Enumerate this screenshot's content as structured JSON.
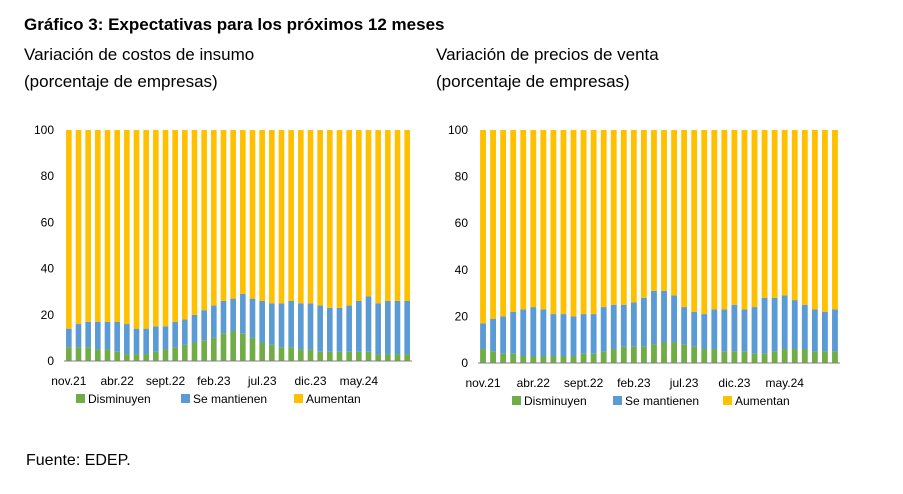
{
  "figure": {
    "title": "Gráfico 3: Expectativas para los próximos 12 meses",
    "source": "Fuente: EDEP."
  },
  "colors": {
    "Disminuyen": "#70ad47",
    "Se mantienen": "#5b9bd5",
    "Aumentan": "#ffc000"
  },
  "chart_data": [
    {
      "type": "bar",
      "stacked": true,
      "subtitle_lines": [
        "Variación de costos de insumo",
        "(porcentaje de empresas)"
      ],
      "ylim": [
        0,
        100
      ],
      "yticks": [
        "0",
        "20",
        "40",
        "60",
        "80",
        "100"
      ],
      "xtick_labels": [
        "nov.21",
        "abr.22",
        "sept.22",
        "feb.23",
        "jul.23",
        "dic.23",
        "may.24"
      ],
      "legend": {
        "position": "bottom",
        "entries": [
          "Disminuyen",
          "Se mantienen",
          "Aumentan"
        ]
      },
      "series": [
        {
          "name": "Disminuyen",
          "values": [
            6,
            6,
            6,
            5,
            5,
            4,
            3,
            3,
            3,
            4,
            5,
            6,
            7,
            8,
            9,
            10,
            12,
            13,
            12,
            10,
            8,
            7,
            6,
            6,
            5,
            5,
            4,
            4,
            4,
            4,
            4,
            4,
            3,
            3,
            3,
            3
          ]
        },
        {
          "name": "Se mantienen",
          "values": [
            8,
            10,
            11,
            12,
            12,
            13,
            13,
            11,
            11,
            11,
            10,
            11,
            11,
            12,
            13,
            14,
            14,
            14,
            17,
            17,
            18,
            18,
            19,
            20,
            20,
            20,
            20,
            19,
            19,
            20,
            22,
            24,
            22,
            23,
            23,
            23
          ]
        },
        {
          "name": "Aumentan",
          "values": [
            86,
            84,
            83,
            83,
            83,
            83,
            84,
            86,
            86,
            85,
            85,
            83,
            82,
            80,
            78,
            76,
            74,
            73,
            71,
            73,
            74,
            75,
            75,
            74,
            75,
            75,
            76,
            77,
            77,
            76,
            74,
            72,
            75,
            74,
            74,
            74
          ]
        }
      ]
    },
    {
      "type": "bar",
      "stacked": true,
      "subtitle_lines": [
        "Variación de precios de venta",
        "(porcentaje de empresas)"
      ],
      "ylim": [
        0,
        100
      ],
      "yticks": [
        "0",
        "20",
        "40",
        "60",
        "80",
        "100"
      ],
      "xtick_labels": [
        "nov.21",
        "abr.22",
        "sept.22",
        "feb.23",
        "jul.23",
        "dic.23",
        "may.24"
      ],
      "legend": {
        "position": "bottom",
        "entries": [
          "Disminuyen",
          "Se mantienen",
          "Aumentan"
        ]
      },
      "series": [
        {
          "name": "Disminuyen",
          "values": [
            6,
            5,
            4,
            4,
            3,
            3,
            3,
            3,
            3,
            3,
            4,
            4,
            5,
            6,
            7,
            7,
            7,
            8,
            9,
            9,
            8,
            7,
            6,
            6,
            5,
            5,
            5,
            4,
            4,
            5,
            6,
            6,
            6,
            5,
            5,
            5
          ]
        },
        {
          "name": "Se mantienen",
          "values": [
            11,
            14,
            16,
            18,
            20,
            21,
            20,
            18,
            18,
            17,
            17,
            17,
            19,
            19,
            18,
            19,
            21,
            23,
            22,
            20,
            16,
            15,
            15,
            17,
            18,
            20,
            18,
            20,
            24,
            23,
            23,
            21,
            19,
            18,
            17,
            18
          ]
        },
        {
          "name": "Aumentan",
          "values": [
            83,
            81,
            80,
            78,
            77,
            76,
            77,
            79,
            79,
            80,
            79,
            79,
            76,
            75,
            75,
            74,
            72,
            69,
            69,
            71,
            76,
            78,
            79,
            77,
            77,
            75,
            77,
            76,
            72,
            72,
            71,
            73,
            75,
            77,
            78,
            77
          ]
        }
      ]
    }
  ]
}
